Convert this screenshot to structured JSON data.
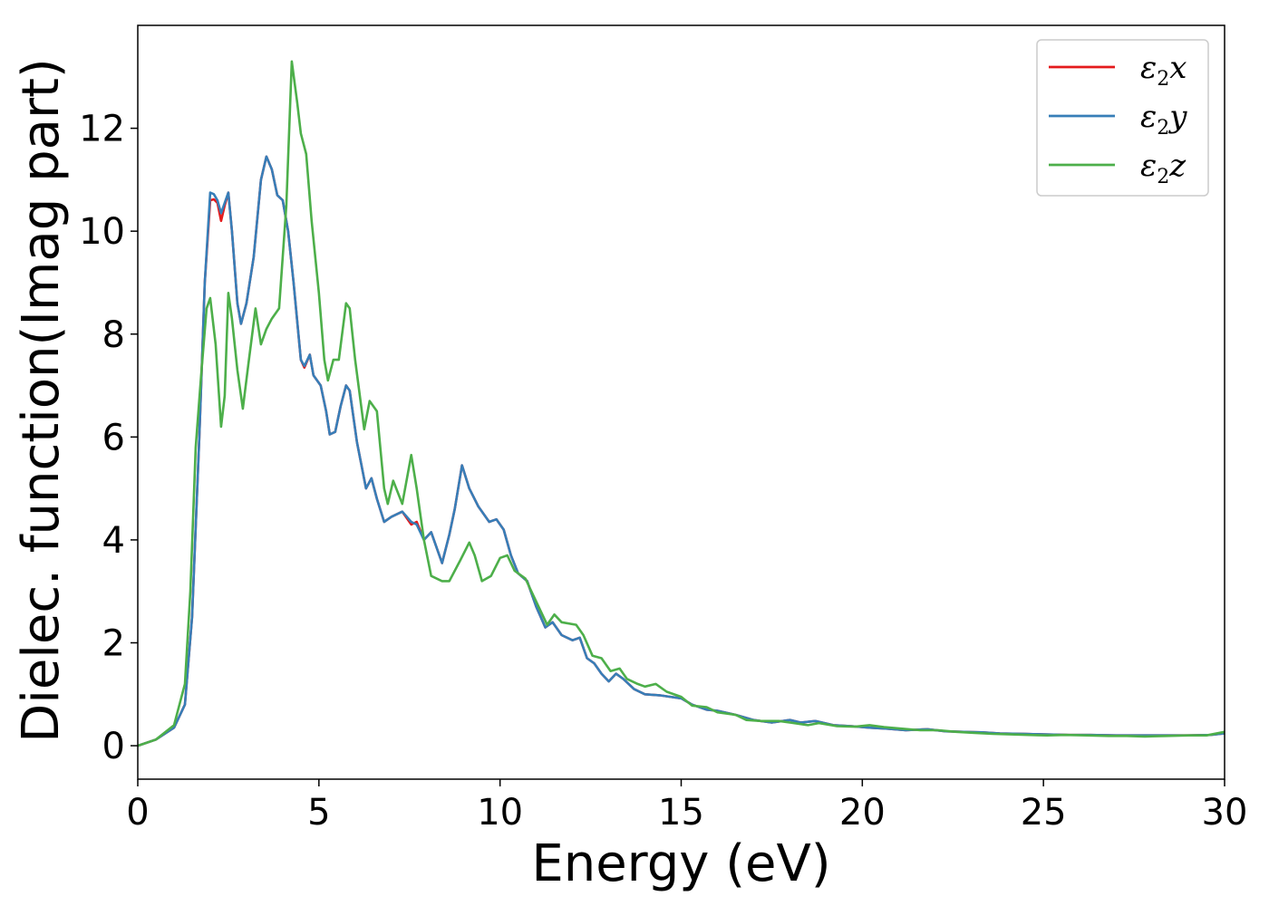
{
  "chart_data": {
    "type": "line",
    "xlabel": "Energy (eV)",
    "ylabel": "Dielec. function(Imag part)",
    "xlim": [
      0,
      30
    ],
    "ylim": [
      -0.65,
      14.0
    ],
    "xticks": [
      0,
      5,
      10,
      15,
      20,
      25,
      30
    ],
    "yticks": [
      0,
      2,
      4,
      6,
      8,
      10,
      12
    ],
    "grid": false,
    "legend_position": "top-right",
    "series": [
      {
        "name": "ε₂x",
        "label_base": "ε",
        "label_sub": "2",
        "label_suffix": "x",
        "color": "#e41a1c",
        "points": [
          [
            0,
            0
          ],
          [
            0.5,
            0.12
          ],
          [
            1,
            0.35
          ],
          [
            1.3,
            0.8
          ],
          [
            1.5,
            2.5
          ],
          [
            1.7,
            6.0
          ],
          [
            1.85,
            9.0
          ],
          [
            2.0,
            10.6
          ],
          [
            2.1,
            10.62
          ],
          [
            2.2,
            10.55
          ],
          [
            2.3,
            10.2
          ],
          [
            2.4,
            10.5
          ],
          [
            2.5,
            10.75
          ],
          [
            2.6,
            10.0
          ],
          [
            2.75,
            8.6
          ],
          [
            2.85,
            8.2
          ],
          [
            3.0,
            8.6
          ],
          [
            3.2,
            9.5
          ],
          [
            3.4,
            11.0
          ],
          [
            3.55,
            11.45
          ],
          [
            3.7,
            11.2
          ],
          [
            3.85,
            10.7
          ],
          [
            4.0,
            10.6
          ],
          [
            4.15,
            10.0
          ],
          [
            4.3,
            9.0
          ],
          [
            4.5,
            7.5
          ],
          [
            4.6,
            7.35
          ],
          [
            4.75,
            7.6
          ],
          [
            4.85,
            7.2
          ],
          [
            5.05,
            7.0
          ],
          [
            5.2,
            6.5
          ],
          [
            5.3,
            6.05
          ],
          [
            5.45,
            6.1
          ],
          [
            5.6,
            6.6
          ],
          [
            5.75,
            7.0
          ],
          [
            5.85,
            6.9
          ],
          [
            6.05,
            5.9
          ],
          [
            6.3,
            5.0
          ],
          [
            6.45,
            5.2
          ],
          [
            6.6,
            4.8
          ],
          [
            6.8,
            4.35
          ],
          [
            7.0,
            4.45
          ],
          [
            7.3,
            4.55
          ],
          [
            7.55,
            4.3
          ],
          [
            7.7,
            4.35
          ],
          [
            7.9,
            4.0
          ],
          [
            8.1,
            4.15
          ],
          [
            8.4,
            3.55
          ],
          [
            8.6,
            4.1
          ],
          [
            8.75,
            4.6
          ],
          [
            8.95,
            5.45
          ],
          [
            9.15,
            5.0
          ],
          [
            9.4,
            4.65
          ],
          [
            9.7,
            4.35
          ],
          [
            9.9,
            4.4
          ],
          [
            10.1,
            4.2
          ],
          [
            10.3,
            3.7
          ],
          [
            10.5,
            3.35
          ],
          [
            10.75,
            3.2
          ],
          [
            11.0,
            2.7
          ],
          [
            11.25,
            2.3
          ],
          [
            11.45,
            2.4
          ],
          [
            11.7,
            2.15
          ],
          [
            12.0,
            2.05
          ],
          [
            12.2,
            2.1
          ],
          [
            12.4,
            1.7
          ],
          [
            12.6,
            1.6
          ],
          [
            12.8,
            1.4
          ],
          [
            13.0,
            1.25
          ],
          [
            13.2,
            1.4
          ],
          [
            13.4,
            1.3
          ],
          [
            13.7,
            1.1
          ],
          [
            14.0,
            1.0
          ],
          [
            14.4,
            0.98
          ],
          [
            14.7,
            0.95
          ],
          [
            15.0,
            0.92
          ],
          [
            15.3,
            0.8
          ],
          [
            15.7,
            0.7
          ],
          [
            16.0,
            0.68
          ],
          [
            16.5,
            0.6
          ],
          [
            17.0,
            0.5
          ],
          [
            17.5,
            0.45
          ],
          [
            18.0,
            0.5
          ],
          [
            18.3,
            0.45
          ],
          [
            18.7,
            0.48
          ],
          [
            19.2,
            0.4
          ],
          [
            19.7,
            0.38
          ],
          [
            20.2,
            0.35
          ],
          [
            20.7,
            0.33
          ],
          [
            21.2,
            0.3
          ],
          [
            21.8,
            0.32
          ],
          [
            22.3,
            0.28
          ],
          [
            22.8,
            0.27
          ],
          [
            23.3,
            0.26
          ],
          [
            23.8,
            0.24
          ],
          [
            24.5,
            0.23
          ],
          [
            25.0,
            0.22
          ],
          [
            25.7,
            0.21
          ],
          [
            26.3,
            0.21
          ],
          [
            27.0,
            0.2
          ],
          [
            27.7,
            0.2
          ],
          [
            28.3,
            0.2
          ],
          [
            29.0,
            0.2
          ],
          [
            29.6,
            0.21
          ],
          [
            30.0,
            0.24
          ]
        ]
      },
      {
        "name": "ε₂y",
        "label_base": "ε",
        "label_sub": "2",
        "label_suffix": "y",
        "color": "#377eb8",
        "points": [
          [
            0,
            0
          ],
          [
            0.5,
            0.12
          ],
          [
            1,
            0.35
          ],
          [
            1.3,
            0.8
          ],
          [
            1.5,
            2.5
          ],
          [
            1.7,
            6.0
          ],
          [
            1.85,
            9.0
          ],
          [
            2.0,
            10.75
          ],
          [
            2.1,
            10.72
          ],
          [
            2.2,
            10.6
          ],
          [
            2.3,
            10.35
          ],
          [
            2.4,
            10.55
          ],
          [
            2.5,
            10.75
          ],
          [
            2.6,
            10.0
          ],
          [
            2.75,
            8.6
          ],
          [
            2.85,
            8.2
          ],
          [
            3.0,
            8.6
          ],
          [
            3.2,
            9.5
          ],
          [
            3.4,
            11.0
          ],
          [
            3.55,
            11.45
          ],
          [
            3.7,
            11.2
          ],
          [
            3.85,
            10.7
          ],
          [
            4.0,
            10.6
          ],
          [
            4.15,
            10.0
          ],
          [
            4.3,
            9.0
          ],
          [
            4.5,
            7.5
          ],
          [
            4.6,
            7.38
          ],
          [
            4.75,
            7.6
          ],
          [
            4.85,
            7.2
          ],
          [
            5.05,
            7.0
          ],
          [
            5.2,
            6.5
          ],
          [
            5.3,
            6.05
          ],
          [
            5.45,
            6.1
          ],
          [
            5.6,
            6.6
          ],
          [
            5.75,
            7.0
          ],
          [
            5.85,
            6.9
          ],
          [
            6.05,
            5.9
          ],
          [
            6.3,
            5.0
          ],
          [
            6.45,
            5.2
          ],
          [
            6.6,
            4.8
          ],
          [
            6.8,
            4.35
          ],
          [
            7.0,
            4.45
          ],
          [
            7.3,
            4.55
          ],
          [
            7.55,
            4.35
          ],
          [
            7.7,
            4.3
          ],
          [
            7.9,
            4.0
          ],
          [
            8.1,
            4.15
          ],
          [
            8.4,
            3.55
          ],
          [
            8.6,
            4.1
          ],
          [
            8.75,
            4.6
          ],
          [
            8.95,
            5.45
          ],
          [
            9.15,
            5.0
          ],
          [
            9.4,
            4.65
          ],
          [
            9.7,
            4.35
          ],
          [
            9.9,
            4.4
          ],
          [
            10.1,
            4.2
          ],
          [
            10.3,
            3.7
          ],
          [
            10.5,
            3.35
          ],
          [
            10.75,
            3.2
          ],
          [
            11.0,
            2.7
          ],
          [
            11.25,
            2.3
          ],
          [
            11.45,
            2.4
          ],
          [
            11.7,
            2.15
          ],
          [
            12.0,
            2.05
          ],
          [
            12.2,
            2.1
          ],
          [
            12.4,
            1.7
          ],
          [
            12.6,
            1.6
          ],
          [
            12.8,
            1.4
          ],
          [
            13.0,
            1.25
          ],
          [
            13.2,
            1.4
          ],
          [
            13.4,
            1.3
          ],
          [
            13.7,
            1.1
          ],
          [
            14.0,
            1.0
          ],
          [
            14.4,
            0.98
          ],
          [
            14.7,
            0.95
          ],
          [
            15.0,
            0.92
          ],
          [
            15.3,
            0.8
          ],
          [
            15.7,
            0.7
          ],
          [
            16.0,
            0.68
          ],
          [
            16.5,
            0.6
          ],
          [
            17.0,
            0.5
          ],
          [
            17.5,
            0.45
          ],
          [
            18.0,
            0.5
          ],
          [
            18.3,
            0.45
          ],
          [
            18.7,
            0.48
          ],
          [
            19.2,
            0.4
          ],
          [
            19.7,
            0.38
          ],
          [
            20.2,
            0.35
          ],
          [
            20.7,
            0.33
          ],
          [
            21.2,
            0.3
          ],
          [
            21.8,
            0.32
          ],
          [
            22.3,
            0.28
          ],
          [
            22.8,
            0.27
          ],
          [
            23.3,
            0.26
          ],
          [
            23.8,
            0.24
          ],
          [
            24.5,
            0.23
          ],
          [
            25.0,
            0.22
          ],
          [
            25.7,
            0.21
          ],
          [
            26.3,
            0.21
          ],
          [
            27.0,
            0.2
          ],
          [
            27.7,
            0.2
          ],
          [
            28.3,
            0.2
          ],
          [
            29.0,
            0.2
          ],
          [
            29.6,
            0.21
          ],
          [
            30.0,
            0.24
          ]
        ]
      },
      {
        "name": "ε₂z",
        "label_base": "ε",
        "label_sub": "2",
        "label_suffix": "z",
        "color": "#4daf4a",
        "points": [
          [
            0,
            0
          ],
          [
            0.5,
            0.12
          ],
          [
            1,
            0.4
          ],
          [
            1.3,
            1.2
          ],
          [
            1.45,
            3.0
          ],
          [
            1.6,
            5.8
          ],
          [
            1.75,
            7.2
          ],
          [
            1.9,
            8.5
          ],
          [
            2.0,
            8.7
          ],
          [
            2.15,
            7.8
          ],
          [
            2.3,
            6.2
          ],
          [
            2.4,
            6.8
          ],
          [
            2.5,
            8.8
          ],
          [
            2.6,
            8.3
          ],
          [
            2.75,
            7.3
          ],
          [
            2.9,
            6.55
          ],
          [
            3.05,
            7.4
          ],
          [
            3.25,
            8.5
          ],
          [
            3.4,
            7.8
          ],
          [
            3.55,
            8.1
          ],
          [
            3.7,
            8.3
          ],
          [
            3.9,
            8.5
          ],
          [
            4.1,
            10.5
          ],
          [
            4.25,
            13.3
          ],
          [
            4.4,
            12.5
          ],
          [
            4.5,
            11.9
          ],
          [
            4.65,
            11.5
          ],
          [
            4.8,
            10.2
          ],
          [
            5.0,
            8.8
          ],
          [
            5.15,
            7.5
          ],
          [
            5.25,
            7.1
          ],
          [
            5.4,
            7.5
          ],
          [
            5.55,
            7.5
          ],
          [
            5.75,
            8.6
          ],
          [
            5.85,
            8.5
          ],
          [
            6.0,
            7.5
          ],
          [
            6.25,
            6.15
          ],
          [
            6.4,
            6.7
          ],
          [
            6.6,
            6.5
          ],
          [
            6.8,
            5.0
          ],
          [
            6.9,
            4.7
          ],
          [
            7.05,
            5.15
          ],
          [
            7.3,
            4.7
          ],
          [
            7.55,
            5.65
          ],
          [
            7.7,
            5.0
          ],
          [
            7.9,
            4.0
          ],
          [
            8.1,
            3.3
          ],
          [
            8.4,
            3.2
          ],
          [
            8.6,
            3.2
          ],
          [
            8.9,
            3.6
          ],
          [
            9.15,
            3.95
          ],
          [
            9.3,
            3.7
          ],
          [
            9.5,
            3.2
          ],
          [
            9.75,
            3.3
          ],
          [
            10.0,
            3.65
          ],
          [
            10.2,
            3.7
          ],
          [
            10.4,
            3.4
          ],
          [
            10.7,
            3.25
          ],
          [
            11.0,
            2.8
          ],
          [
            11.3,
            2.35
          ],
          [
            11.5,
            2.55
          ],
          [
            11.7,
            2.4
          ],
          [
            12.1,
            2.35
          ],
          [
            12.3,
            2.15
          ],
          [
            12.55,
            1.75
          ],
          [
            12.8,
            1.7
          ],
          [
            13.05,
            1.45
          ],
          [
            13.3,
            1.5
          ],
          [
            13.5,
            1.3
          ],
          [
            13.8,
            1.2
          ],
          [
            14.0,
            1.15
          ],
          [
            14.3,
            1.2
          ],
          [
            14.6,
            1.05
          ],
          [
            15.0,
            0.95
          ],
          [
            15.3,
            0.78
          ],
          [
            15.7,
            0.75
          ],
          [
            16.0,
            0.65
          ],
          [
            16.5,
            0.6
          ],
          [
            16.8,
            0.5
          ],
          [
            17.2,
            0.48
          ],
          [
            17.7,
            0.48
          ],
          [
            18.0,
            0.45
          ],
          [
            18.5,
            0.4
          ],
          [
            18.8,
            0.44
          ],
          [
            19.3,
            0.38
          ],
          [
            19.8,
            0.37
          ],
          [
            20.2,
            0.4
          ],
          [
            20.6,
            0.36
          ],
          [
            21.1,
            0.33
          ],
          [
            21.6,
            0.3
          ],
          [
            22.1,
            0.3
          ],
          [
            22.6,
            0.27
          ],
          [
            23.1,
            0.25
          ],
          [
            23.6,
            0.23
          ],
          [
            24.1,
            0.22
          ],
          [
            24.6,
            0.21
          ],
          [
            25.1,
            0.2
          ],
          [
            25.6,
            0.21
          ],
          [
            26.2,
            0.2
          ],
          [
            26.8,
            0.19
          ],
          [
            27.3,
            0.19
          ],
          [
            27.8,
            0.18
          ],
          [
            28.4,
            0.19
          ],
          [
            29.0,
            0.2
          ],
          [
            29.5,
            0.2
          ],
          [
            30.0,
            0.27
          ]
        ]
      }
    ]
  }
}
